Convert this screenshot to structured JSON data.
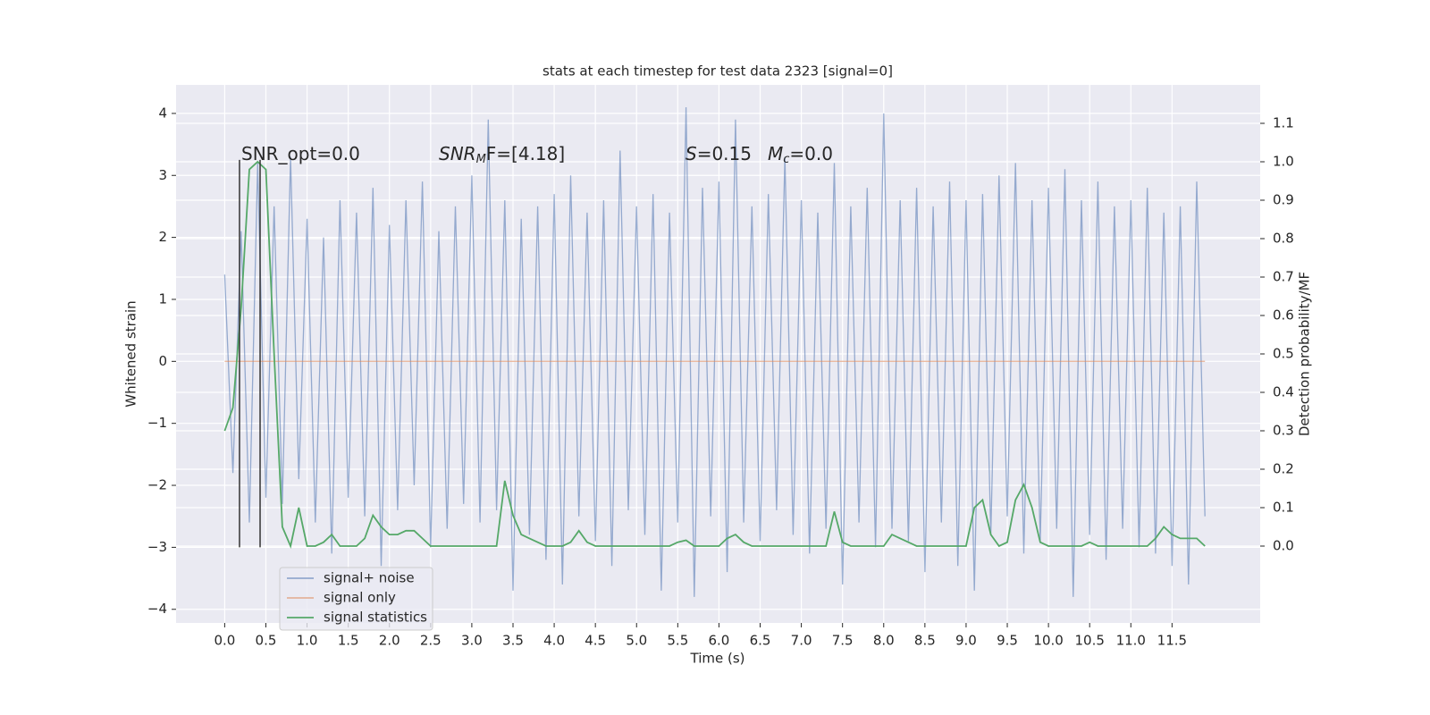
{
  "chart_data": {
    "type": "line",
    "title": "stats at each timestep for test data 2323 [signal=0]",
    "xlabel": "Time (s)",
    "ylabel": "Whitened strain",
    "y2label": "Detection probability/MF",
    "xlim": [
      -0.59,
      12.57
    ],
    "ylim": [
      -4.22,
      4.46
    ],
    "y2lim": [
      -0.2,
      1.2
    ],
    "xticks": [
      {
        "value": 0,
        "label": "0.0"
      },
      0.5,
      {
        "value": 1,
        "label": "1.0"
      },
      1.5,
      {
        "value": 2,
        "label": "2.0"
      },
      2.5,
      {
        "value": 3,
        "label": "3.0"
      },
      3.5,
      {
        "value": 4,
        "label": "4.0"
      },
      4.5,
      {
        "value": 5,
        "label": "5.0"
      },
      5.5,
      {
        "value": 6,
        "label": "6.0"
      },
      6.5,
      {
        "value": 7,
        "label": "7.0"
      },
      7.5,
      {
        "value": 8,
        "label": "8.0"
      },
      8.5,
      {
        "value": 9,
        "label": "9.0"
      },
      9.5,
      {
        "value": 10,
        "label": "10.0"
      },
      10.5,
      {
        "value": 11,
        "label": "11.0"
      },
      11.5
    ],
    "yticks": [
      {
        "value": -4,
        "label": "−4"
      },
      {
        "value": -3,
        "label": "−3"
      },
      {
        "value": -2,
        "label": "−2"
      },
      {
        "value": -1,
        "label": "−1"
      },
      0,
      1,
      2,
      3,
      4
    ],
    "y2ticks": [
      {
        "value": 0,
        "label": "0.0"
      },
      0.1,
      0.2,
      0.3,
      0.4,
      0.5,
      0.6,
      0.7,
      0.8,
      0.9,
      {
        "value": 1,
        "label": "1.0"
      },
      1.1
    ],
    "grid": true,
    "x": [
      0.0,
      0.1,
      0.2,
      0.3,
      0.4,
      0.5,
      0.6,
      0.7,
      0.8,
      0.9,
      1.0,
      1.1,
      1.2,
      1.3,
      1.4,
      1.5,
      1.6,
      1.7,
      1.8,
      1.9,
      2.0,
      2.1,
      2.2,
      2.3,
      2.4,
      2.5,
      2.6,
      2.7,
      2.8,
      2.9,
      3.0,
      3.1,
      3.2,
      3.3,
      3.4,
      3.5,
      3.6,
      3.7,
      3.8,
      3.9,
      4.0,
      4.1,
      4.2,
      4.3,
      4.4,
      4.5,
      4.6,
      4.7,
      4.8,
      4.9,
      5.0,
      5.1,
      5.2,
      5.3,
      5.4,
      5.5,
      5.6,
      5.7,
      5.8,
      5.9,
      6.0,
      6.1,
      6.2,
      6.3,
      6.4,
      6.5,
      6.6,
      6.7,
      6.8,
      6.9,
      7.0,
      7.1,
      7.2,
      7.3,
      7.4,
      7.5,
      7.6,
      7.7,
      7.8,
      7.9,
      8.0,
      8.1,
      8.2,
      8.3,
      8.4,
      8.5,
      8.6,
      8.7,
      8.8,
      8.9,
      9.0,
      9.1,
      9.2,
      9.3,
      9.4,
      9.5,
      9.6,
      9.7,
      9.8,
      9.9,
      10.0,
      10.1,
      10.2,
      10.3,
      10.4,
      10.5,
      10.6,
      10.7,
      10.8,
      10.9,
      11.0,
      11.1,
      11.2,
      11.3,
      11.4,
      11.5,
      11.6,
      11.7,
      11.8,
      11.9
    ],
    "series": [
      {
        "name": "signal+ noise",
        "color": "#4c72b0",
        "values": [
          1.4,
          -1.8,
          2.1,
          -2.6,
          3.2,
          -2.2,
          2.5,
          -2.3,
          3.3,
          -1.9,
          2.3,
          -2.6,
          2.0,
          -3.1,
          2.6,
          -2.2,
          2.4,
          -2.5,
          2.8,
          -3.3,
          2.2,
          -2.4,
          2.6,
          -2.0,
          2.9,
          -3.0,
          2.1,
          -2.7,
          2.5,
          -2.3,
          3.0,
          -2.6,
          3.9,
          -2.4,
          2.6,
          -3.7,
          2.3,
          -2.8,
          2.5,
          -3.2,
          2.7,
          -3.6,
          3.0,
          -2.5,
          2.4,
          -2.9,
          2.6,
          -3.3,
          3.4,
          -2.4,
          2.5,
          -2.8,
          2.7,
          -3.7,
          2.4,
          -2.6,
          4.1,
          -3.8,
          2.8,
          -2.5,
          2.9,
          -3.4,
          3.9,
          -2.6,
          2.5,
          -2.9,
          2.7,
          -2.4,
          3.3,
          -2.8,
          2.6,
          -3.1,
          2.4,
          -2.7,
          3.2,
          -3.6,
          2.5,
          -2.6,
          2.8,
          -3.0,
          4.0,
          -2.7,
          2.6,
          -2.9,
          2.8,
          -3.4,
          2.5,
          -2.6,
          2.9,
          -3.3,
          2.6,
          -3.7,
          2.7,
          -2.8,
          3.0,
          -2.5,
          3.2,
          -3.1,
          2.6,
          -2.9,
          2.8,
          -2.7,
          3.1,
          -3.8,
          2.6,
          -2.8,
          2.9,
          -3.2,
          2.5,
          -2.7,
          2.6,
          -3.0,
          2.8,
          -3.1,
          2.4,
          -3.3,
          2.5,
          -3.6,
          2.9,
          -2.5
        ]
      },
      {
        "name": "signal only",
        "color": "#dd8452",
        "x": [
          0.0,
          11.9
        ],
        "values": [
          0,
          0
        ]
      },
      {
        "name": "signal statistics",
        "color": "#55a868",
        "axis": "y2",
        "values": [
          0.3,
          0.36,
          0.62,
          0.98,
          1.0,
          0.98,
          0.5,
          0.05,
          0.0,
          0.1,
          0.0,
          0.0,
          0.01,
          0.03,
          0.0,
          0.0,
          0.0,
          0.02,
          0.08,
          0.05,
          0.03,
          0.03,
          0.04,
          0.04,
          0.02,
          0.0,
          0.0,
          0.0,
          0.0,
          0.0,
          0.0,
          0.0,
          0.0,
          0.0,
          0.17,
          0.08,
          0.03,
          0.02,
          0.01,
          0.0,
          0.0,
          0.0,
          0.01,
          0.04,
          0.01,
          0.0,
          0.0,
          0.0,
          0.0,
          0.0,
          0.0,
          0.0,
          0.0,
          0.0,
          0.0,
          0.01,
          0.015,
          0.0,
          0.0,
          0.0,
          0.0,
          0.02,
          0.03,
          0.01,
          0.0,
          0.0,
          0.0,
          0.0,
          0.0,
          0.0,
          0.0,
          0.0,
          0.0,
          0.0,
          0.09,
          0.01,
          0.0,
          0.0,
          0.0,
          0.0,
          0.0,
          0.03,
          0.02,
          0.01,
          0.0,
          0.0,
          0.0,
          0.0,
          0.0,
          0.0,
          0.0,
          0.1,
          0.12,
          0.03,
          0.0,
          0.01,
          0.12,
          0.16,
          0.1,
          0.01,
          0.0,
          0.0,
          0.0,
          0.0,
          0.0,
          0.01,
          0.0,
          0.0,
          0.0,
          0.0,
          0.0,
          0.0,
          0.0,
          0.02,
          0.05,
          0.03,
          0.02,
          0.02,
          0.02,
          0.0
        ]
      }
    ],
    "vlines": {
      "color": "#333333",
      "x": [
        0.18,
        0.43
      ],
      "y": [
        -3,
        3.25
      ]
    },
    "annotations": [
      {
        "parts": [
          "SNR_opt=0.0"
        ]
      },
      {
        "parts": [
          "SNR",
          "M",
          "F=[4.18]"
        ]
      },
      {
        "parts": [
          "S",
          "=0.15"
        ]
      },
      {
        "parts": [
          "M",
          "c",
          "=0.0"
        ]
      }
    ],
    "legend": "lower left"
  }
}
